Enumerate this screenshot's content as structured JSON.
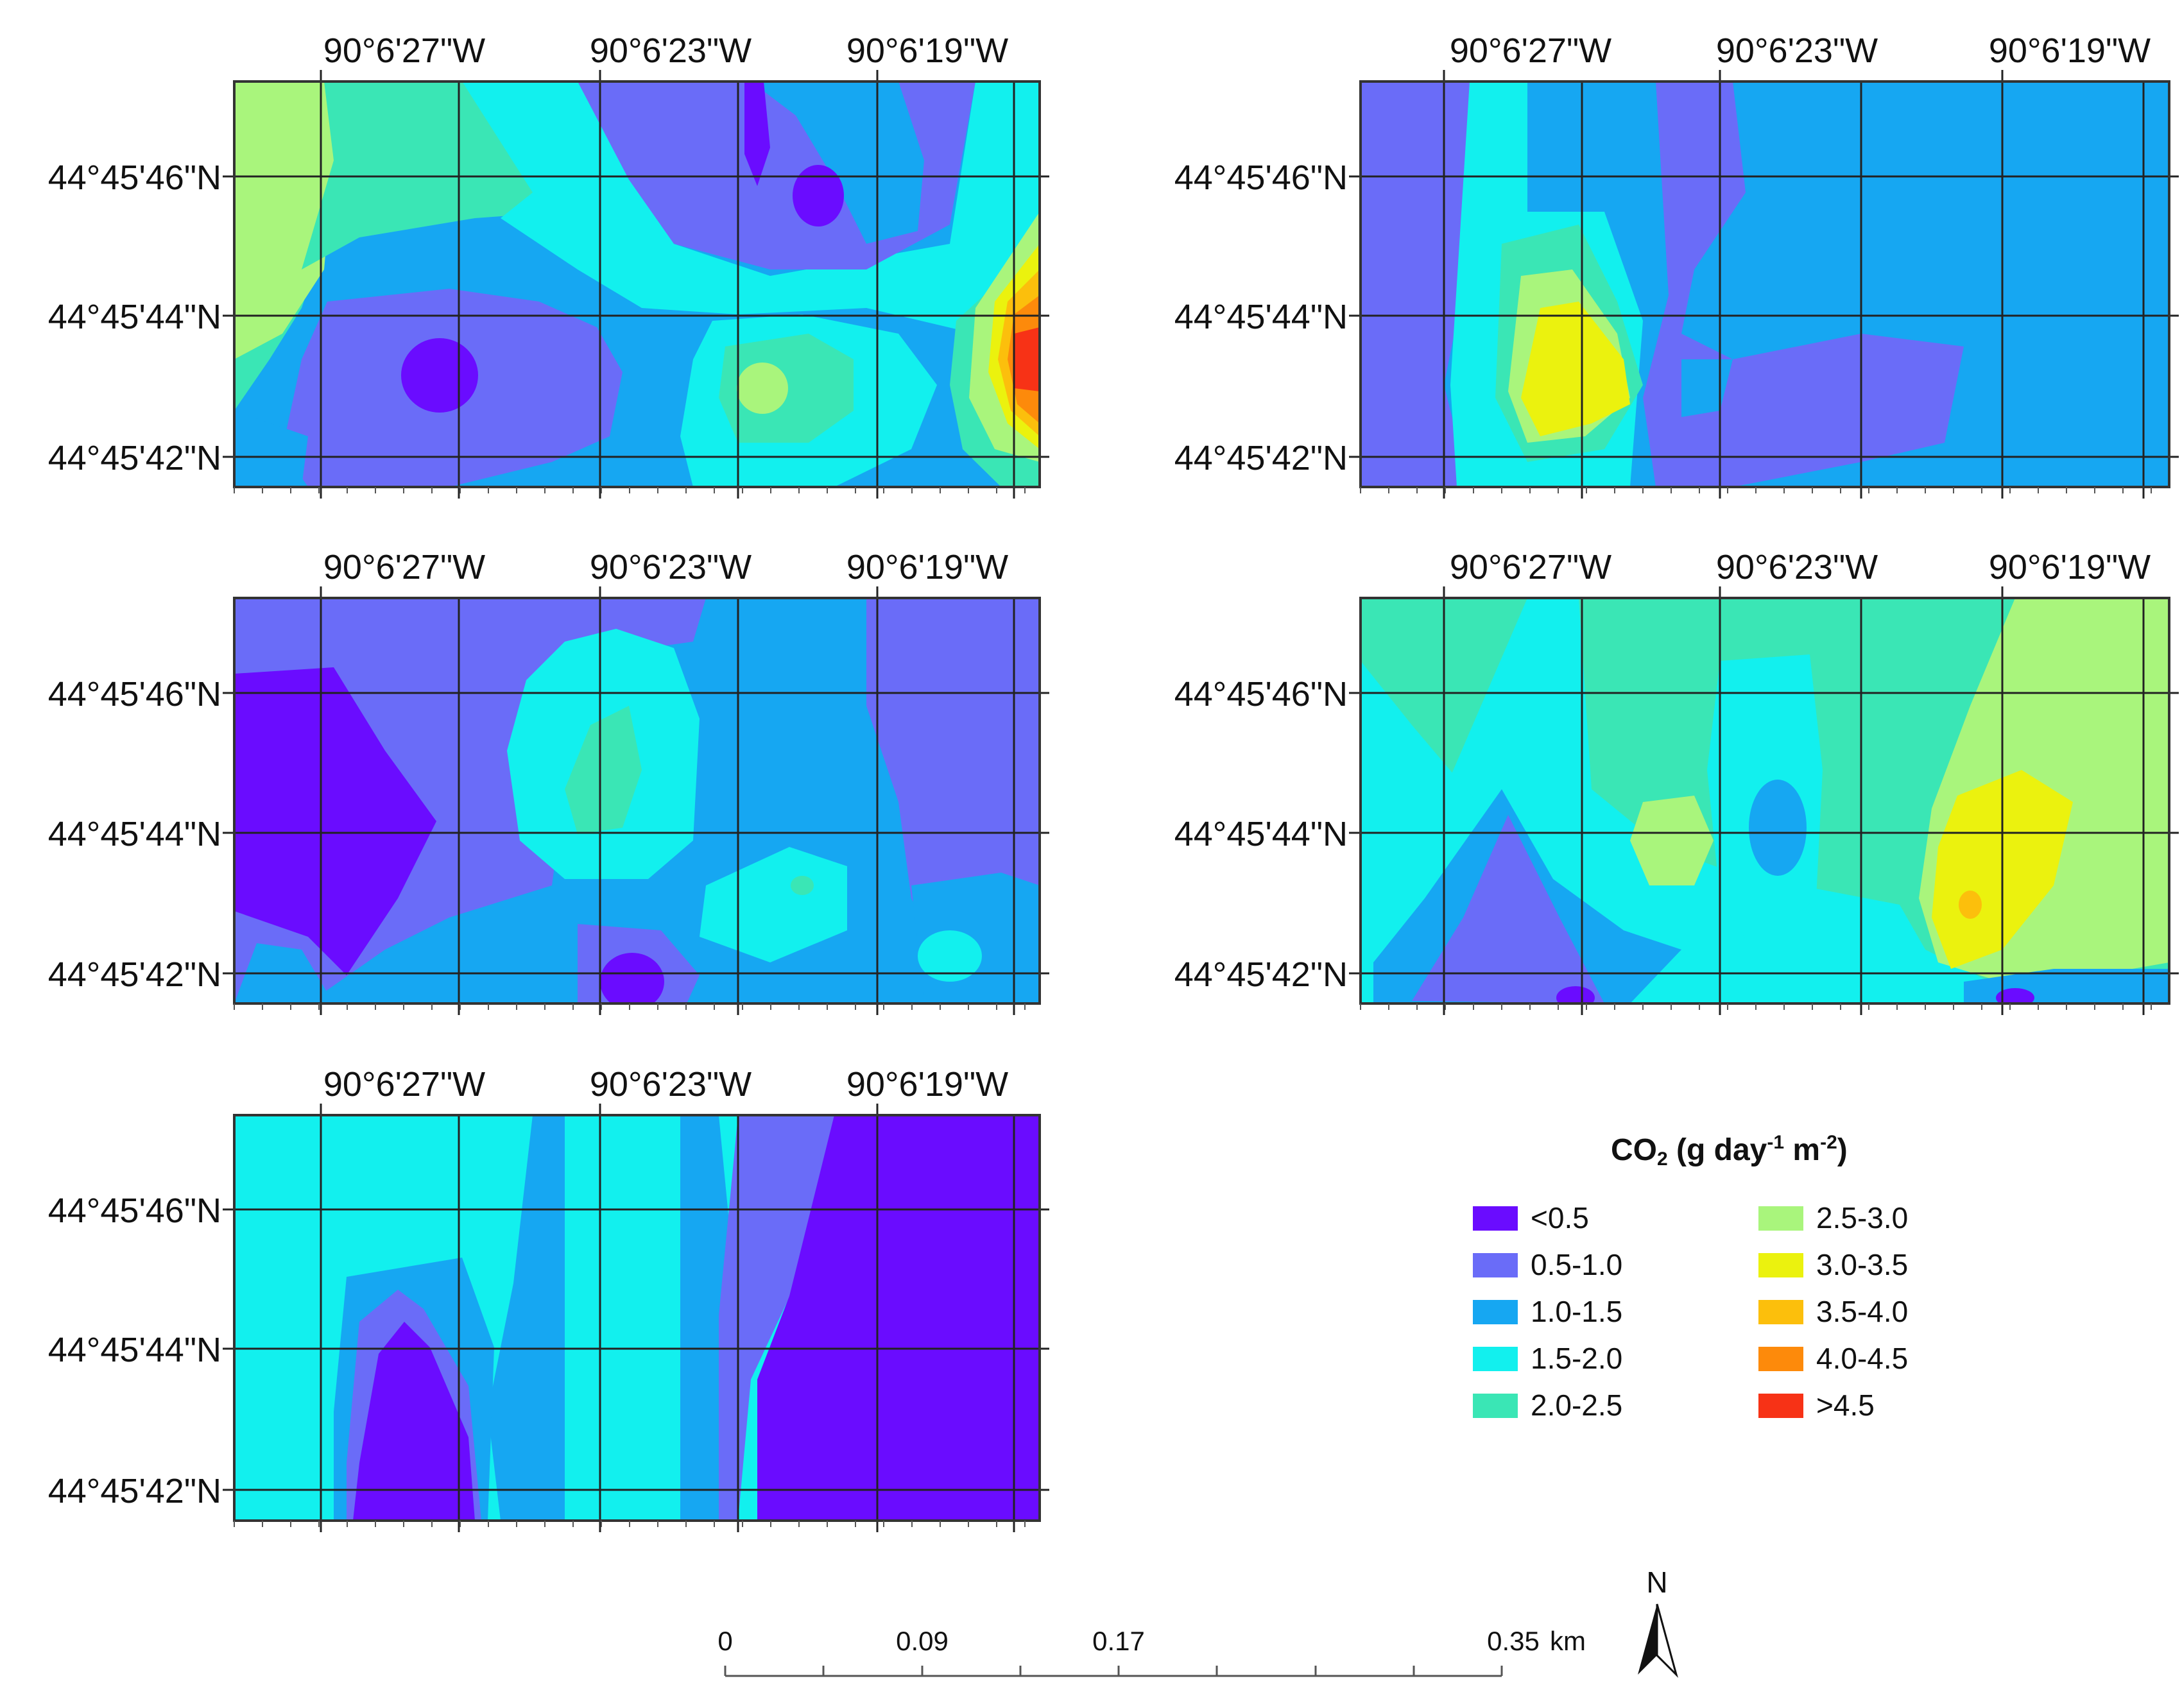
{
  "colors": {
    "lt0_5": "#6a0cff",
    "c0_5_1": "#6a6cf8",
    "c1_1_5": "#16a7f2",
    "c1_5_2": "#12f0ee",
    "c2_2_5": "#3ae6b5",
    "c2_5_3": "#a9f57c",
    "c3_3_5": "#ebf20e",
    "c3_5_4": "#fcbf0c",
    "c4_4_5": "#fd8a0b",
    "gt4_5": "#f73216"
  },
  "axes": {
    "lon_labels": [
      "90°6'27\"W",
      "90°6'23\"W",
      "90°6'19\"W"
    ],
    "lat_labels": [
      "44°45'46\"N",
      "44°45'44\"N",
      "44°45'42\"N"
    ]
  },
  "panels": [
    {
      "id": "panel-1",
      "description_name": "map-panel-top-left"
    },
    {
      "id": "panel-2",
      "description_name": "map-panel-top-right"
    },
    {
      "id": "panel-3",
      "description_name": "map-panel-middle-left"
    },
    {
      "id": "panel-4",
      "description_name": "map-panel-middle-right"
    },
    {
      "id": "panel-5",
      "description_name": "map-panel-bottom-left"
    }
  ],
  "legend": {
    "title_main": "CO",
    "title_sub": "2",
    "title_rest_1": " (g day",
    "title_sup_1": "-1",
    "title_rest_2": " m",
    "title_sup_2": "-2",
    "title_end": ")",
    "items": [
      {
        "label": "<0.5",
        "color": "#6a0cff"
      },
      {
        "label": "0.5-1.0",
        "color": "#6a6cf8"
      },
      {
        "label": "1.0-1.5",
        "color": "#16a7f2"
      },
      {
        "label": "1.5-2.0",
        "color": "#12f0ee"
      },
      {
        "label": "2.0-2.5",
        "color": "#3ae6b5"
      },
      {
        "label": "2.5-3.0",
        "color": "#a9f57c"
      },
      {
        "label": "3.0-3.5",
        "color": "#ebf20e"
      },
      {
        "label": "3.5-4.0",
        "color": "#fcbf0c"
      },
      {
        "label": "4.0-4.5",
        "color": "#fd8a0b"
      },
      {
        "label": ">4.5",
        "color": "#f73216"
      }
    ]
  },
  "scale_bar": {
    "ticks": [
      "0",
      "0.09",
      "0.17",
      "0.35"
    ],
    "unit": "km"
  },
  "north_arrow": {
    "label": "N"
  }
}
